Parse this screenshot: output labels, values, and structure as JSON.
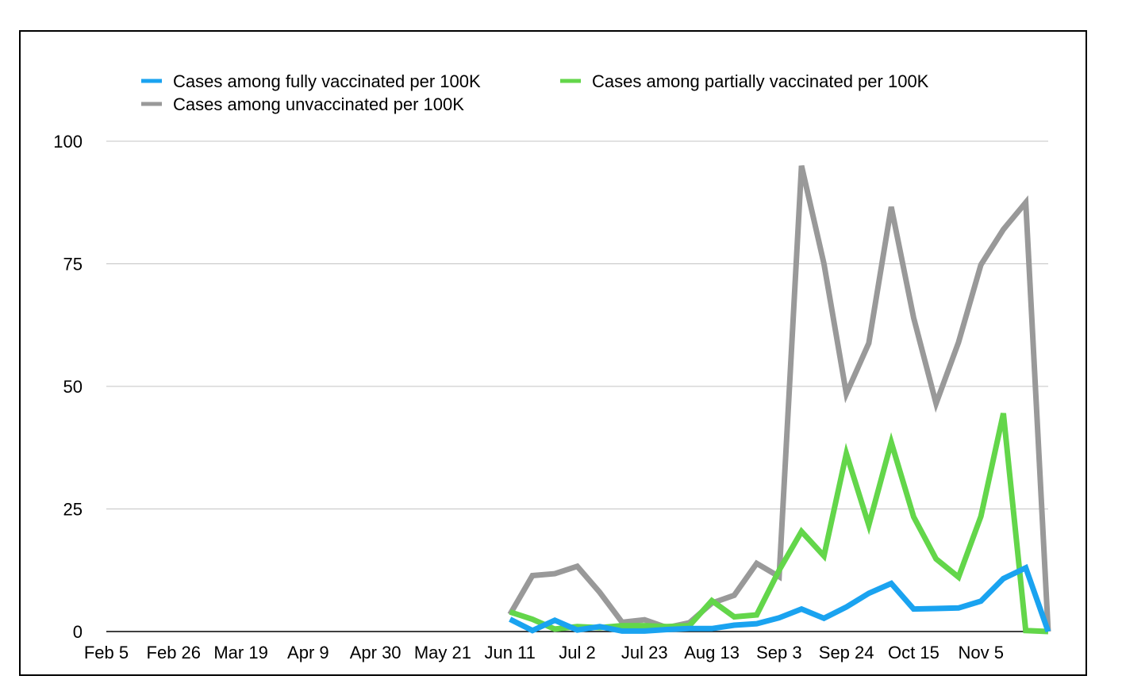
{
  "chart_data": {
    "type": "line",
    "title": "",
    "xlabel": "",
    "ylabel": "",
    "ylim": [
      0,
      100
    ],
    "yticks": [
      0,
      25,
      50,
      75,
      100
    ],
    "x_tick_labels": [
      "Feb 5",
      "Feb 26",
      "Mar 19",
      "Apr 9",
      "Apr 30",
      "May 21",
      "Jun 11",
      "Jul 2",
      "Jul 23",
      "Aug 13",
      "Sep 3",
      "Sep 24",
      "Oct 15",
      "Nov 5"
    ],
    "x": [
      "Jun 11",
      "Jun 18",
      "Jun 25",
      "Jul 2",
      "Jul 9",
      "Jul 16",
      "Jul 23",
      "Jul 30",
      "Aug 6",
      "Aug 13",
      "Aug 20",
      "Aug 27",
      "Sep 3",
      "Sep 10",
      "Sep 17",
      "Sep 24",
      "Oct 1",
      "Oct 8",
      "Oct 15",
      "Oct 22",
      "Oct 29",
      "Nov 5",
      "Nov 12",
      "Nov 19",
      "Nov 26"
    ],
    "grid": true,
    "legend_position": "top",
    "series": [
      {
        "name": "Cases among fully vaccinated per 100K",
        "color": "#1aa3f0",
        "values": [
          2.5,
          0.2,
          2.3,
          0.3,
          1.0,
          0.1,
          0.1,
          0.4,
          0.6,
          0.6,
          1.3,
          1.6,
          2.8,
          4.6,
          2.7,
          5.0,
          7.8,
          9.8,
          4.6,
          4.7,
          4.8,
          6.2,
          10.8,
          13.0,
          0
        ]
      },
      {
        "name": "Cases among partially vaccinated per 100K",
        "color": "#63d64a",
        "values": [
          4.0,
          2.5,
          0.5,
          1.0,
          0.8,
          1.2,
          1.2,
          1.0,
          1.2,
          6.3,
          3.0,
          3.4,
          12.5,
          20.4,
          15.4,
          36.3,
          21.7,
          38.6,
          23.4,
          14.8,
          11.1,
          23.5,
          44.5,
          0.2,
          0
        ]
      },
      {
        "name": "Cases among unvaccinated per 100K",
        "color": "#999999",
        "values": [
          3.5,
          11.4,
          11.8,
          13.3,
          8.0,
          1.9,
          2.4,
          0.8,
          1.8,
          5.8,
          7.4,
          13.9,
          11.2,
          95.0,
          75.0,
          48.5,
          58.8,
          86.6,
          64.0,
          46.5,
          59.0,
          74.8,
          82.0,
          87.5,
          0
        ]
      }
    ]
  }
}
